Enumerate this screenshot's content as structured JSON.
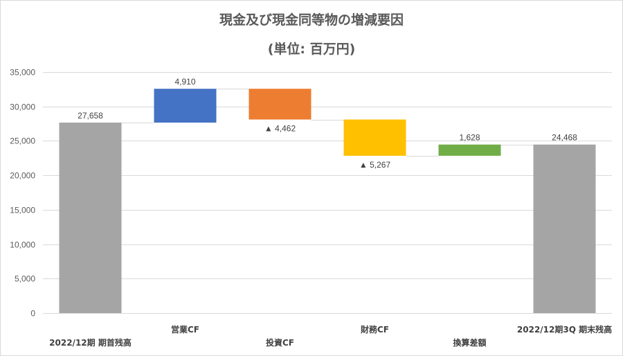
{
  "chart_data": {
    "type": "bar",
    "subtype": "waterfall",
    "title": "現金及び現金同等物の増減要因",
    "subtitle": "(単位: 百万円)",
    "categories": [
      "2022/12期 期首残高",
      "営業CF",
      "投資CF",
      "財務CF",
      "換算差額",
      "2022/12期3Q 期末残高"
    ],
    "values": [
      27658,
      4910,
      -4462,
      -5267,
      1628,
      24468
    ],
    "bar_kind": [
      "total",
      "delta",
      "delta",
      "delta",
      "delta",
      "total"
    ],
    "data_labels": [
      "27,658",
      "4,910",
      "▲ 4,462",
      "▲ 5,267",
      "1,628",
      "24,468"
    ],
    "ylim": [
      0,
      35000
    ],
    "yticks": [
      "0",
      "5,000",
      "10,000",
      "15,000",
      "20,000",
      "25,000",
      "30,000",
      "35,000"
    ],
    "grid": true,
    "legend": "none",
    "colors": [
      "#a5a5a5",
      "#4472c4",
      "#ed7d31",
      "#ffc000",
      "#70ad47",
      "#a5a5a5"
    ],
    "connector_color": "#d9d9d9",
    "gridline_color": "#d9d9d9"
  }
}
